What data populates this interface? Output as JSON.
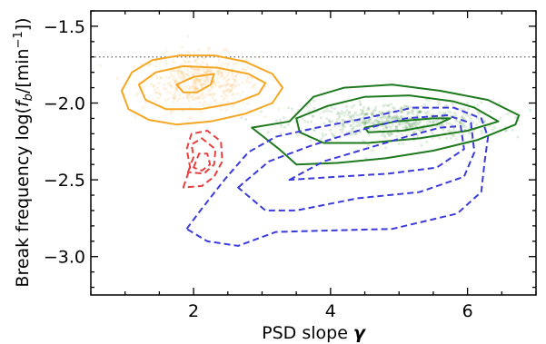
{
  "chart_data": {
    "type": "scatter",
    "title": "",
    "xlabel_text": "PSD slope",
    "xlabel_symbol": "γ",
    "ylabel_text": "Break frequency log(",
    "ylabel_f": "f",
    "ylabel_sub": "b",
    "ylabel_mid": "/[min",
    "ylabel_sup": "−1",
    "ylabel_end": "])",
    "xlim": [
      0.5,
      7.0
    ],
    "ylim": [
      -3.25,
      -1.4
    ],
    "xticks_major": [
      2,
      4,
      6
    ],
    "xtick_labels": [
      "2",
      "4",
      "6"
    ],
    "yticks_major": [
      -3.0,
      -2.5,
      -2.0,
      -1.5
    ],
    "ytick_labels": [
      "−3.0",
      "−2.5",
      "−2.0",
      "−1.5"
    ],
    "grid": false,
    "reference_line": {
      "y": -1.7,
      "style": "dotted",
      "color": "#808080"
    },
    "series": [
      {
        "color": "#f5a623",
        "line_style": "solid",
        "scatter_cloud": {
          "center": [
            2.1,
            -1.86
          ],
          "spread": [
            0.42,
            0.09
          ],
          "count": 450
        },
        "contours": [
          [
            [
              0.95,
              -1.92
            ],
            [
              1.1,
              -1.8
            ],
            [
              1.4,
              -1.72
            ],
            [
              1.8,
              -1.69
            ],
            [
              2.3,
              -1.69
            ],
            [
              2.75,
              -1.73
            ],
            [
              3.15,
              -1.81
            ],
            [
              3.3,
              -1.9
            ],
            [
              3.15,
              -2.0
            ],
            [
              2.75,
              -2.07
            ],
            [
              2.25,
              -2.12
            ],
            [
              1.75,
              -2.14
            ],
            [
              1.35,
              -2.11
            ],
            [
              1.05,
              -2.04
            ]
          ],
          [
            [
              1.2,
              -1.88
            ],
            [
              1.45,
              -1.8
            ],
            [
              1.85,
              -1.76
            ],
            [
              2.35,
              -1.77
            ],
            [
              2.8,
              -1.81
            ],
            [
              3.05,
              -1.87
            ],
            [
              2.95,
              -1.94
            ],
            [
              2.6,
              -2.0
            ],
            [
              2.1,
              -2.04
            ],
            [
              1.6,
              -2.04
            ],
            [
              1.3,
              -1.98
            ]
          ],
          [
            [
              1.75,
              -1.88
            ],
            [
              2.0,
              -1.83
            ],
            [
              2.3,
              -1.81
            ],
            [
              2.25,
              -1.88
            ],
            [
              2.05,
              -1.93
            ],
            [
              1.85,
              -1.93
            ]
          ]
        ]
      },
      {
        "color": "#1f7a1f",
        "line_style": "solid",
        "scatter_cloud": {
          "center": [
            4.95,
            -2.12
          ],
          "spread": [
            0.75,
            0.06
          ],
          "count": 600
        },
        "contours": [
          [
            [
              2.85,
              -2.16
            ],
            [
              3.4,
              -2.12
            ],
            [
              3.75,
              -1.96
            ],
            [
              4.2,
              -1.9
            ],
            [
              4.9,
              -1.88
            ],
            [
              5.6,
              -1.92
            ],
            [
              6.3,
              -1.98
            ],
            [
              6.75,
              -2.08
            ],
            [
              6.7,
              -2.14
            ],
            [
              6.15,
              -2.24
            ],
            [
              5.5,
              -2.31
            ],
            [
              4.8,
              -2.36
            ],
            [
              4.1,
              -2.39
            ],
            [
              3.5,
              -2.4
            ],
            [
              3.25,
              -2.3
            ]
          ],
          [
            [
              3.5,
              -2.1
            ],
            [
              3.95,
              -2.02
            ],
            [
              4.5,
              -1.96
            ],
            [
              5.15,
              -1.95
            ],
            [
              5.8,
              -1.99
            ],
            [
              6.1,
              -2.03
            ],
            [
              6.45,
              -2.12
            ],
            [
              6.0,
              -2.18
            ],
            [
              5.3,
              -2.23
            ],
            [
              4.55,
              -2.26
            ],
            [
              3.9,
              -2.26
            ],
            [
              3.55,
              -2.19
            ]
          ],
          [
            [
              4.5,
              -2.16
            ],
            [
              4.95,
              -2.12
            ],
            [
              5.5,
              -2.1
            ],
            [
              5.75,
              -2.1
            ],
            [
              5.55,
              -2.14
            ],
            [
              5.05,
              -2.18
            ],
            [
              4.55,
              -2.19
            ]
          ]
        ]
      },
      {
        "color": "#3b3bdc",
        "line_style": "dashed",
        "contours": [
          [
            [
              1.9,
              -2.82
            ],
            [
              2.1,
              -2.7
            ],
            [
              2.45,
              -2.5
            ],
            [
              2.8,
              -2.32
            ],
            [
              3.2,
              -2.22
            ],
            [
              3.8,
              -2.16
            ],
            [
              4.5,
              -2.1
            ],
            [
              5.2,
              -2.03
            ],
            [
              5.8,
              -2.03
            ],
            [
              6.2,
              -2.1
            ],
            [
              6.3,
              -2.22
            ],
            [
              6.25,
              -2.38
            ],
            [
              6.2,
              -2.58
            ],
            [
              5.85,
              -2.72
            ],
            [
              4.9,
              -2.82
            ],
            [
              4.0,
              -2.83
            ],
            [
              3.2,
              -2.84
            ],
            [
              2.65,
              -2.93
            ],
            [
              2.2,
              -2.9
            ]
          ],
          [
            [
              2.65,
              -2.55
            ],
            [
              3.1,
              -2.38
            ],
            [
              3.7,
              -2.28
            ],
            [
              4.4,
              -2.18
            ],
            [
              5.1,
              -2.1
            ],
            [
              5.7,
              -2.08
            ],
            [
              6.05,
              -2.13
            ],
            [
              6.1,
              -2.32
            ],
            [
              5.95,
              -2.48
            ],
            [
              5.3,
              -2.58
            ],
            [
              4.4,
              -2.62
            ],
            [
              3.5,
              -2.7
            ],
            [
              3.05,
              -2.7
            ]
          ],
          [
            [
              3.4,
              -2.5
            ],
            [
              3.9,
              -2.38
            ],
            [
              4.5,
              -2.3
            ],
            [
              5.1,
              -2.22
            ],
            [
              5.6,
              -2.16
            ],
            [
              5.9,
              -2.15
            ],
            [
              5.95,
              -2.3
            ],
            [
              5.55,
              -2.42
            ],
            [
              4.85,
              -2.46
            ],
            [
              4.1,
              -2.48
            ]
          ]
        ]
      },
      {
        "color": "#e84040",
        "line_style": "dashed",
        "contours": [
          [
            [
              1.85,
              -2.55
            ],
            [
              1.95,
              -2.42
            ],
            [
              1.9,
              -2.3
            ],
            [
              1.97,
              -2.2
            ],
            [
              2.2,
              -2.18
            ],
            [
              2.4,
              -2.25
            ],
            [
              2.42,
              -2.38
            ],
            [
              2.3,
              -2.48
            ],
            [
              2.12,
              -2.54
            ]
          ],
          [
            [
              1.92,
              -2.45
            ],
            [
              2.0,
              -2.35
            ],
            [
              1.97,
              -2.27
            ],
            [
              2.12,
              -2.23
            ],
            [
              2.32,
              -2.3
            ],
            [
              2.3,
              -2.4
            ],
            [
              2.15,
              -2.46
            ]
          ],
          [
            [
              2.0,
              -2.42
            ],
            [
              2.08,
              -2.33
            ],
            [
              2.2,
              -2.33
            ],
            [
              2.24,
              -2.4
            ],
            [
              2.12,
              -2.44
            ]
          ]
        ]
      }
    ]
  }
}
